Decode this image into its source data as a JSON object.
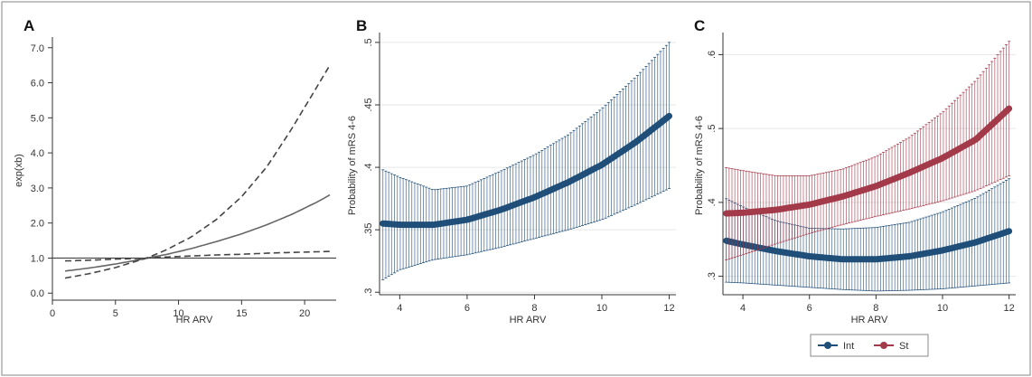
{
  "chart_data": [
    {
      "type": "line",
      "panel_label": "A",
      "xlabel": "HR ARV",
      "ylabel": "exp(xb)",
      "xlim": [
        0,
        22.5
      ],
      "ylim": [
        -0.2,
        7.2
      ],
      "x_ticks": [
        0,
        5,
        10,
        15,
        20
      ],
      "y_ticks": [
        0,
        1,
        2,
        3,
        4,
        5,
        6,
        7
      ],
      "x_tick_labels": [
        "0",
        "5",
        "10",
        "15",
        "20"
      ],
      "y_tick_labels": [
        "0.0",
        "1.0",
        "2.0",
        "3.0",
        "4.0",
        "5.0",
        "6.0",
        "7.0"
      ],
      "reference_line": 1.0,
      "grid": false,
      "series": [
        {
          "style": "solid",
          "color": "#666666",
          "x": [
            1,
            3,
            5,
            7,
            7.5,
            9,
            11,
            13,
            15,
            17,
            19,
            21,
            22
          ],
          "y": [
            0.63,
            0.72,
            0.83,
            0.96,
            1.0,
            1.1,
            1.27,
            1.47,
            1.69,
            1.95,
            2.25,
            2.6,
            2.8
          ]
        },
        {
          "style": "dashed",
          "color": "#444444",
          "x": [
            1,
            3,
            5,
            7,
            7.5,
            9,
            11,
            13,
            15,
            17,
            19,
            21,
            22
          ],
          "y": [
            0.43,
            0.56,
            0.73,
            0.95,
            1.0,
            1.23,
            1.6,
            2.1,
            2.75,
            3.6,
            4.7,
            5.9,
            6.5
          ]
        },
        {
          "style": "dashed",
          "color": "#444444",
          "x": [
            1,
            3,
            5,
            7,
            7.5,
            9,
            11,
            13,
            15,
            17,
            19,
            21,
            22
          ],
          "y": [
            0.92,
            0.94,
            0.97,
            0.99,
            1.0,
            1.03,
            1.06,
            1.09,
            1.11,
            1.14,
            1.16,
            1.18,
            1.19
          ]
        }
      ]
    },
    {
      "type": "line",
      "panel_label": "B",
      "xlabel": "HR ARV",
      "ylabel": "Probability of mRS 4-6",
      "xlim": [
        3.4,
        12.2
      ],
      "ylim": [
        0.298,
        0.505
      ],
      "x_ticks": [
        4,
        6,
        8,
        10,
        12
      ],
      "y_ticks": [
        0.3,
        0.35,
        0.4,
        0.45,
        0.5
      ],
      "x_tick_labels": [
        "4",
        "6",
        "8",
        "10",
        "12"
      ],
      "y_tick_labels": [
        ".3",
        ".35",
        ".4",
        ".45",
        ".5"
      ],
      "grid": true,
      "series": [
        {
          "color": "#1f4e79",
          "x": [
            3.5,
            4,
            5,
            6,
            7,
            8,
            9,
            10,
            11,
            12
          ],
          "y": [
            0.355,
            0.354,
            0.354,
            0.358,
            0.366,
            0.376,
            0.388,
            0.402,
            0.42,
            0.441
          ],
          "ci_low": [
            0.31,
            0.318,
            0.326,
            0.33,
            0.336,
            0.343,
            0.35,
            0.358,
            0.37,
            0.383
          ],
          "ci_high": [
            0.398,
            0.392,
            0.382,
            0.385,
            0.397,
            0.41,
            0.426,
            0.447,
            0.472,
            0.5
          ]
        }
      ]
    },
    {
      "type": "line",
      "panel_label": "C",
      "xlabel": "HR ARV",
      "ylabel": "Probability of mRS 4-6",
      "xlim": [
        3.4,
        12.2
      ],
      "ylim": [
        0.275,
        0.625
      ],
      "x_ticks": [
        4,
        6,
        8,
        10,
        12
      ],
      "y_ticks": [
        0.3,
        0.4,
        0.5,
        0.6
      ],
      "x_tick_labels": [
        "4",
        "6",
        "8",
        "10",
        "12"
      ],
      "y_tick_labels": [
        ".3",
        ".4",
        ".5",
        ".6"
      ],
      "grid": true,
      "legend_position": "bottom",
      "series": [
        {
          "name": "Int",
          "color": "#1f4e79",
          "x": [
            3.5,
            4,
            5,
            6,
            7,
            8,
            9,
            10,
            11,
            12
          ],
          "y": [
            0.348,
            0.343,
            0.334,
            0.327,
            0.323,
            0.323,
            0.327,
            0.335,
            0.346,
            0.361
          ],
          "ci_low": [
            0.292,
            0.291,
            0.288,
            0.285,
            0.282,
            0.28,
            0.281,
            0.283,
            0.287,
            0.291
          ],
          "ci_high": [
            0.405,
            0.394,
            0.375,
            0.365,
            0.364,
            0.366,
            0.373,
            0.387,
            0.406,
            0.432
          ]
        },
        {
          "name": "St",
          "color": "#a23a4a",
          "x": [
            3.5,
            4,
            5,
            6,
            7,
            8,
            9,
            10,
            11,
            12
          ],
          "y": [
            0.385,
            0.386,
            0.39,
            0.397,
            0.408,
            0.422,
            0.44,
            0.46,
            0.485,
            0.527
          ],
          "ci_low": [
            0.322,
            0.329,
            0.344,
            0.358,
            0.37,
            0.381,
            0.391,
            0.402,
            0.416,
            0.436
          ],
          "ci_high": [
            0.447,
            0.443,
            0.436,
            0.436,
            0.445,
            0.462,
            0.488,
            0.522,
            0.565,
            0.618
          ]
        }
      ]
    }
  ]
}
